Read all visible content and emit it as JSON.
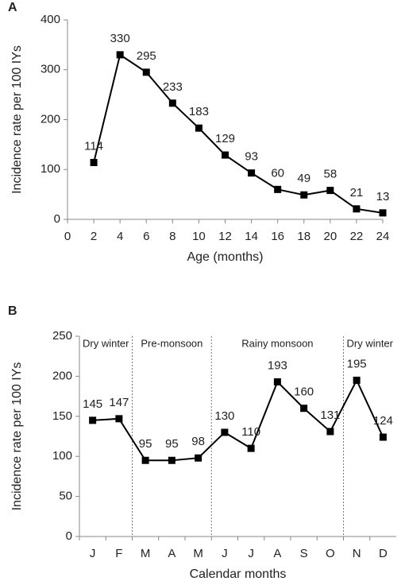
{
  "chart_data": [
    {
      "type": "line",
      "panel": "A",
      "ylabel": "Incidence rate per 100 IYs",
      "xlabel": "Age (months)",
      "x": [
        2,
        4,
        6,
        8,
        10,
        12,
        14,
        16,
        18,
        20,
        22,
        24
      ],
      "values": [
        114,
        330,
        295,
        233,
        183,
        129,
        93,
        60,
        49,
        58,
        21,
        13
      ],
      "xlim": [
        0,
        24
      ],
      "xticks": [
        0,
        2,
        4,
        6,
        8,
        10,
        12,
        14,
        16,
        18,
        20,
        22,
        24
      ],
      "ylim": [
        0,
        400
      ],
      "yticks": [
        0,
        100,
        200,
        300,
        400
      ],
      "color": "#000000"
    },
    {
      "type": "line",
      "panel": "B",
      "ylabel": "Incidence rate per 100 IYs",
      "xlabel": "Calendar months",
      "categories": [
        "J",
        "F",
        "M",
        "A",
        "M",
        "J",
        "J",
        "A",
        "S",
        "O",
        "N",
        "D"
      ],
      "values": [
        145,
        147,
        95,
        95,
        98,
        130,
        110,
        193,
        160,
        131,
        195,
        124
      ],
      "ylim": [
        0,
        250
      ],
      "yticks": [
        0,
        50,
        100,
        150,
        200,
        250
      ],
      "color": "#000000",
      "annotations": [
        "Dry winter",
        "Pre-monsoon",
        "Rainy monsoon",
        "Dry winter"
      ]
    }
  ]
}
